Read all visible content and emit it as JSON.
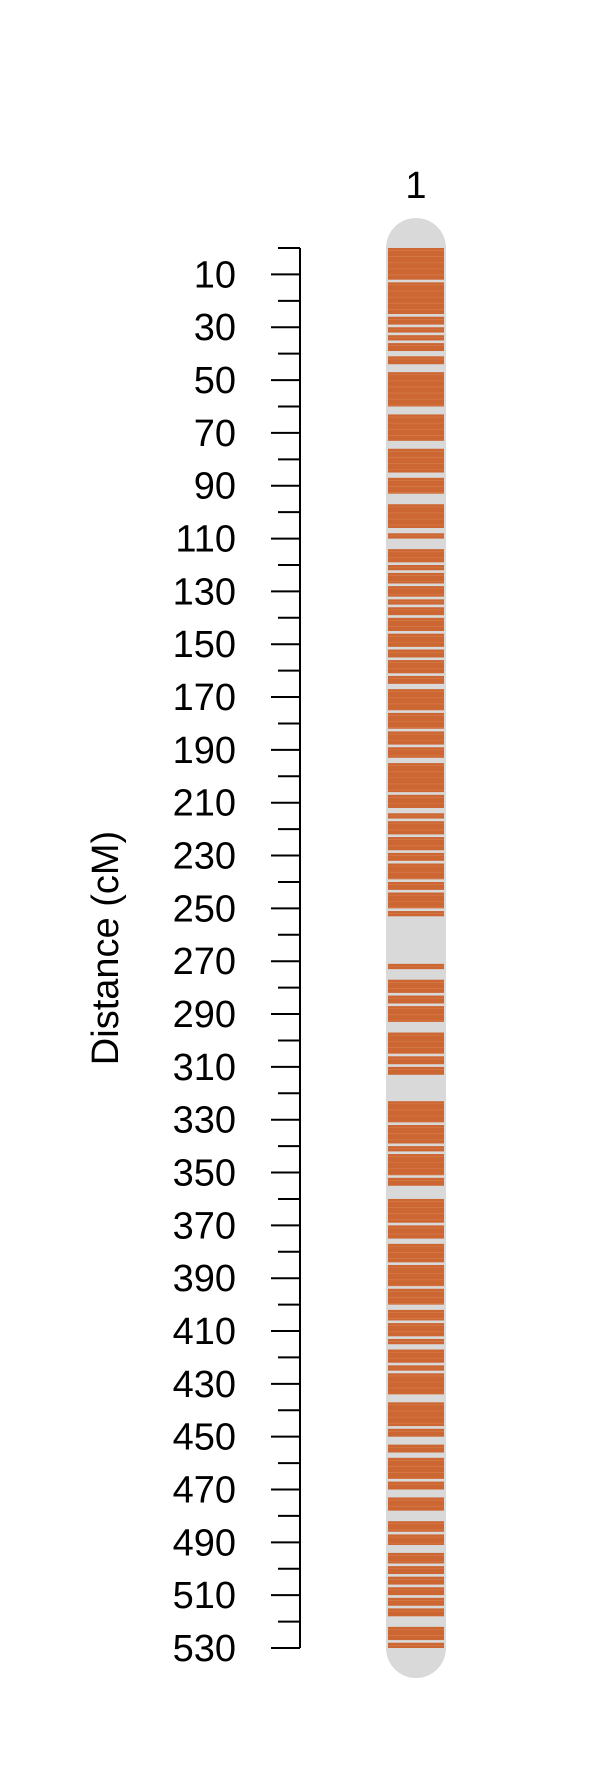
{
  "chart_data": {
    "type": "linkage-map",
    "ylabel": "Distance (cM)",
    "ylim": [
      0,
      530
    ],
    "y_ticks": [
      10,
      30,
      50,
      70,
      90,
      110,
      130,
      150,
      170,
      190,
      210,
      230,
      250,
      270,
      290,
      310,
      330,
      350,
      370,
      390,
      410,
      430,
      450,
      470,
      490,
      510,
      530
    ],
    "minor_tick_step": 10,
    "chromosomes": [
      {
        "label": "1",
        "length_cM": 530,
        "marker_blocks_cM": [
          [
            0,
            12
          ],
          [
            13,
            25
          ],
          [
            26,
            29
          ],
          [
            30,
            32
          ],
          [
            33,
            35
          ],
          [
            36,
            39
          ],
          [
            41,
            44
          ],
          [
            47,
            60
          ],
          [
            63,
            73
          ],
          [
            76,
            85
          ],
          [
            87,
            93
          ],
          [
            97,
            106
          ],
          [
            108,
            110
          ],
          [
            114,
            119
          ],
          [
            120,
            122
          ],
          [
            123,
            127
          ],
          [
            128,
            132
          ],
          [
            133,
            135
          ],
          [
            136,
            139
          ],
          [
            140,
            145
          ],
          [
            146,
            151
          ],
          [
            152,
            155
          ],
          [
            156,
            161
          ],
          [
            162,
            165
          ],
          [
            167,
            175
          ],
          [
            176,
            182
          ],
          [
            183,
            188
          ],
          [
            189,
            193
          ],
          [
            195,
            206
          ],
          [
            207,
            212
          ],
          [
            214,
            216
          ],
          [
            217,
            222
          ],
          [
            223,
            228
          ],
          [
            229,
            232
          ],
          [
            233,
            239
          ],
          [
            240,
            243
          ],
          [
            244,
            250
          ],
          [
            251,
            253
          ],
          [
            271,
            273
          ],
          [
            277,
            282
          ],
          [
            283,
            286
          ],
          [
            287,
            293
          ],
          [
            297,
            305
          ],
          [
            306,
            309
          ],
          [
            310,
            313
          ],
          [
            323,
            331
          ],
          [
            332,
            339
          ],
          [
            340,
            342
          ],
          [
            343,
            351
          ],
          [
            352,
            355
          ],
          [
            360,
            369
          ],
          [
            370,
            375
          ],
          [
            377,
            384
          ],
          [
            385,
            393
          ],
          [
            394,
            400
          ],
          [
            402,
            406
          ],
          [
            407,
            412
          ],
          [
            413,
            415
          ],
          [
            417,
            422
          ],
          [
            423,
            425
          ],
          [
            426,
            434
          ],
          [
            437,
            446
          ],
          [
            447,
            450
          ],
          [
            453,
            456
          ],
          [
            458,
            466
          ],
          [
            467,
            470
          ],
          [
            473,
            478
          ],
          [
            482,
            486
          ],
          [
            487,
            491
          ],
          [
            494,
            498
          ],
          [
            499,
            502
          ],
          [
            503,
            506
          ],
          [
            507,
            510
          ],
          [
            511,
            514
          ],
          [
            515,
            518
          ],
          [
            522,
            527
          ],
          [
            528,
            530
          ]
        ]
      }
    ],
    "colors": {
      "marker": "#cc6633",
      "chromosome_body": "#d9d9d9",
      "axis": "#000000"
    },
    "grid": false,
    "legend": "none"
  }
}
